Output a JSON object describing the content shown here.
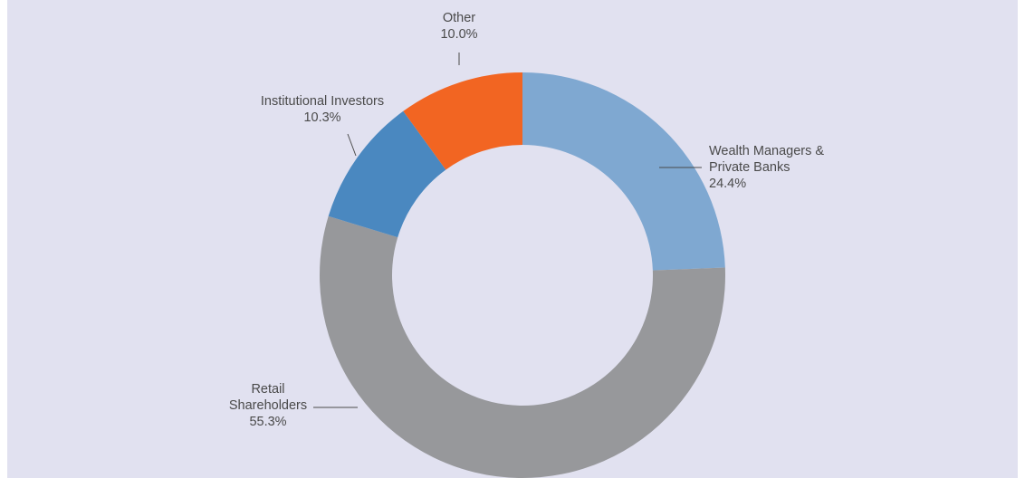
{
  "chart_data": {
    "type": "donut",
    "categories": [
      [
        "Wealth Managers &",
        "Private Banks"
      ],
      [
        "Retail",
        "Shareholders"
      ],
      [
        "Institutional Investors"
      ],
      [
        "Other"
      ]
    ],
    "values": [
      24.4,
      55.3,
      10.3,
      10.0
    ],
    "value_labels": [
      "24.4%",
      "55.3%",
      "10.3%",
      "10.0%"
    ],
    "colors": [
      "#7fa8d1",
      "#97989b",
      "#4a88c0",
      "#f26522"
    ]
  }
}
